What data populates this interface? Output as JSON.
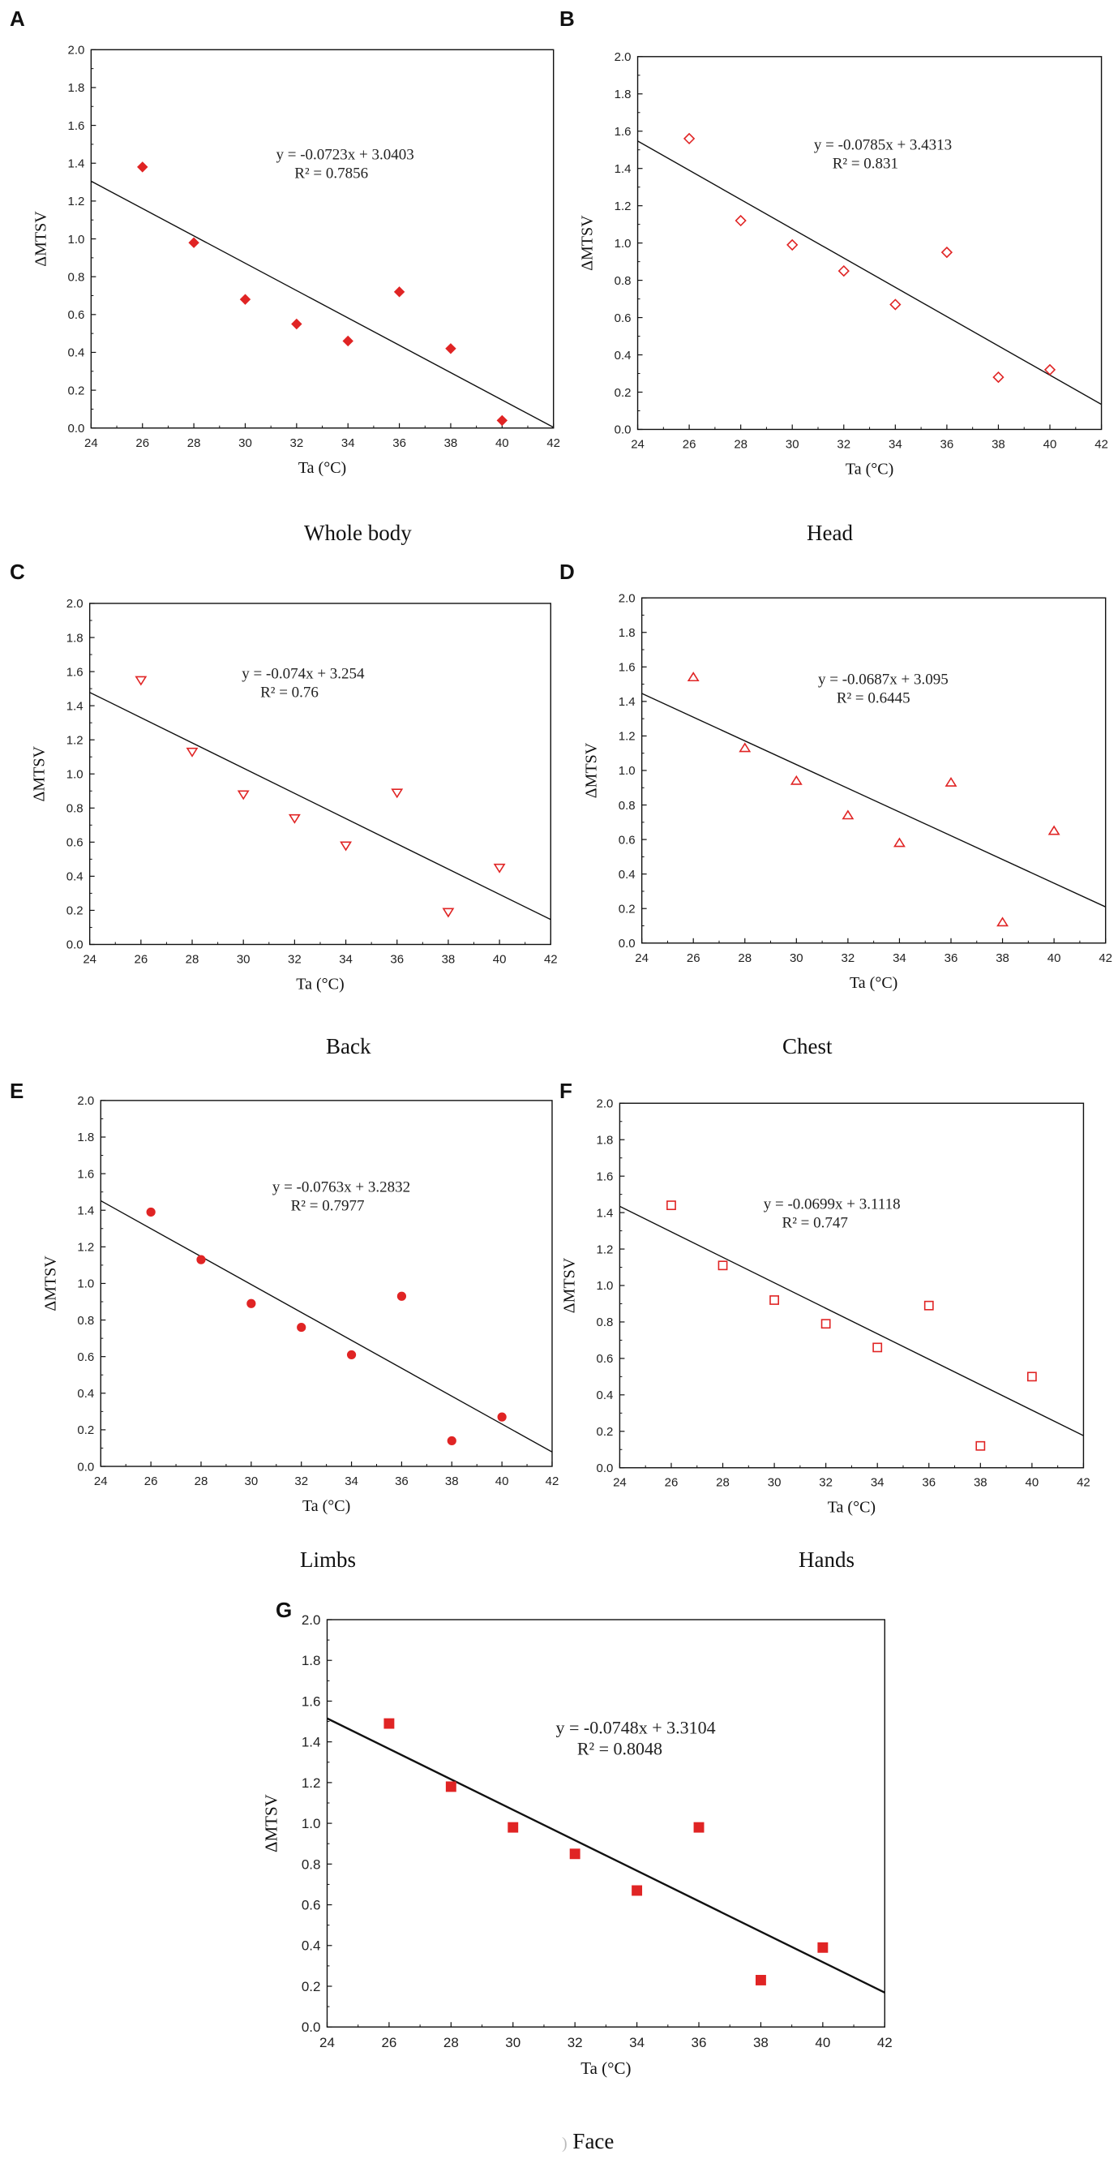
{
  "figure": {
    "caption_prefix_G": ")"
  },
  "colors": {
    "marker": "#e02424",
    "line": "#111111",
    "axis": "#111111"
  },
  "chart_data": [
    {
      "id": "A",
      "type": "scatter",
      "label": "A",
      "subtitle": "Whole body",
      "marker": "diamond-filled",
      "xlabel": "Ta (°C)",
      "ylabel": "ΔMTSV",
      "xlim": [
        24,
        42
      ],
      "ylim": [
        0,
        2.0
      ],
      "xticks": [
        "24",
        "26",
        "28",
        "30",
        "32",
        "34",
        "36",
        "38",
        "40",
        "42"
      ],
      "yticks": [
        "0.0",
        "0.2",
        "0.4",
        "0.6",
        "0.8",
        "1.0",
        "1.2",
        "1.4",
        "1.6",
        "1.8",
        "2.0"
      ],
      "points": [
        [
          26,
          1.38
        ],
        [
          28,
          0.98
        ],
        [
          30,
          0.68
        ],
        [
          32,
          0.55
        ],
        [
          34,
          0.46
        ],
        [
          36,
          0.72
        ],
        [
          38,
          0.42
        ],
        [
          40,
          0.04
        ]
      ],
      "fit": {
        "slope": -0.0723,
        "intercept": 3.0403
      },
      "equation": "y = -0.0723x + 3.0403",
      "r2": "R² = 0.7856"
    },
    {
      "id": "B",
      "type": "scatter",
      "label": "B",
      "subtitle": "Head",
      "marker": "diamond-open",
      "xlabel": "Ta (°C)",
      "ylabel": "ΔMTSV",
      "xlim": [
        24,
        42
      ],
      "ylim": [
        0,
        2.0
      ],
      "xticks": [
        "24",
        "26",
        "28",
        "30",
        "32",
        "34",
        "36",
        "38",
        "40",
        "42"
      ],
      "yticks": [
        "0.0",
        "0.2",
        "0.4",
        "0.6",
        "0.8",
        "1.0",
        "1.2",
        "1.4",
        "1.6",
        "1.8",
        "2.0"
      ],
      "points": [
        [
          26,
          1.56
        ],
        [
          28,
          1.12
        ],
        [
          30,
          0.99
        ],
        [
          32,
          0.85
        ],
        [
          34,
          0.67
        ],
        [
          36,
          0.95
        ],
        [
          38,
          0.28
        ],
        [
          40,
          0.32
        ]
      ],
      "fit": {
        "slope": -0.0785,
        "intercept": 3.4313
      },
      "equation": "y = -0.0785x + 3.4313",
      "r2": "R² = 0.831"
    },
    {
      "id": "C",
      "type": "scatter",
      "label": "C",
      "subtitle": "Back",
      "marker": "triangle-down-open",
      "xlabel": "Ta (°C)",
      "ylabel": "ΔMTSV",
      "xlim": [
        24,
        42
      ],
      "ylim": [
        0,
        2.0
      ],
      "xticks": [
        "24",
        "26",
        "28",
        "30",
        "32",
        "34",
        "36",
        "38",
        "40",
        "42"
      ],
      "yticks": [
        "0.0",
        "0.2",
        "0.4",
        "0.6",
        "0.8",
        "1.0",
        "1.2",
        "1.4",
        "1.6",
        "1.8",
        "2.0"
      ],
      "points": [
        [
          26,
          1.55
        ],
        [
          28,
          1.13
        ],
        [
          30,
          0.88
        ],
        [
          32,
          0.74
        ],
        [
          34,
          0.58
        ],
        [
          36,
          0.89
        ],
        [
          38,
          0.19
        ],
        [
          40,
          0.45
        ]
      ],
      "fit": {
        "slope": -0.074,
        "intercept": 3.254
      },
      "equation": "y = -0.074x + 3.254",
      "r2": "R² = 0.76"
    },
    {
      "id": "D",
      "type": "scatter",
      "label": "D",
      "subtitle": "Chest",
      "marker": "triangle-up-open",
      "xlabel": "Ta (°C)",
      "ylabel": "ΔMTSV",
      "xlim": [
        24,
        42
      ],
      "ylim": [
        0,
        2.0
      ],
      "xticks": [
        "24",
        "26",
        "28",
        "30",
        "32",
        "34",
        "36",
        "38",
        "40",
        "42"
      ],
      "yticks": [
        "0.0",
        "0.2",
        "0.4",
        "0.6",
        "0.8",
        "1.0",
        "1.2",
        "1.4",
        "1.6",
        "1.8",
        "2.0"
      ],
      "points": [
        [
          26,
          1.54
        ],
        [
          28,
          1.13
        ],
        [
          30,
          0.94
        ],
        [
          32,
          0.74
        ],
        [
          34,
          0.58
        ],
        [
          36,
          0.93
        ],
        [
          38,
          0.12
        ],
        [
          40,
          0.65
        ]
      ],
      "fit": {
        "slope": -0.0687,
        "intercept": 3.095
      },
      "equation": "y = -0.0687x + 3.095",
      "r2": "R² = 0.6445"
    },
    {
      "id": "E",
      "type": "scatter",
      "label": "E",
      "subtitle": "Limbs",
      "marker": "circle-filled",
      "xlabel": "Ta (°C)",
      "ylabel": "ΔMTSV",
      "xlim": [
        24,
        42
      ],
      "ylim": [
        0,
        2.0
      ],
      "xticks": [
        "24",
        "26",
        "28",
        "30",
        "32",
        "34",
        "36",
        "38",
        "40",
        "42"
      ],
      "yticks": [
        "0.0",
        "0.2",
        "0.4",
        "0.6",
        "0.8",
        "1.0",
        "1.2",
        "1.4",
        "1.6",
        "1.8",
        "2.0"
      ],
      "points": [
        [
          26,
          1.39
        ],
        [
          28,
          1.13
        ],
        [
          30,
          0.89
        ],
        [
          32,
          0.76
        ],
        [
          34,
          0.61
        ],
        [
          36,
          0.93
        ],
        [
          38,
          0.14
        ],
        [
          40,
          0.27
        ]
      ],
      "fit": {
        "slope": -0.0763,
        "intercept": 3.2832
      },
      "equation": "y = -0.0763x + 3.2832",
      "r2": "R² = 0.7977"
    },
    {
      "id": "F",
      "type": "scatter",
      "label": "F",
      "subtitle": "Hands",
      "marker": "square-open",
      "xlabel": "Ta (°C)",
      "ylabel": "ΔMTSV",
      "xlim": [
        24,
        42
      ],
      "ylim": [
        0,
        2.0
      ],
      "xticks": [
        "24",
        "26",
        "28",
        "30",
        "32",
        "34",
        "36",
        "38",
        "40",
        "42"
      ],
      "yticks": [
        "0.0",
        "0.2",
        "0.4",
        "0.6",
        "0.8",
        "1.0",
        "1.2",
        "1.4",
        "1.6",
        "1.8",
        "2.0"
      ],
      "points": [
        [
          26,
          1.44
        ],
        [
          28,
          1.11
        ],
        [
          30,
          0.92
        ],
        [
          32,
          0.79
        ],
        [
          34,
          0.66
        ],
        [
          36,
          0.89
        ],
        [
          38,
          0.12
        ],
        [
          40,
          0.5
        ]
      ],
      "fit": {
        "slope": -0.0699,
        "intercept": 3.1118
      },
      "equation": "y = -0.0699x + 3.1118",
      "r2": "R² = 0.747"
    },
    {
      "id": "G",
      "type": "scatter",
      "label": "G",
      "subtitle": "Face",
      "marker": "square-filled",
      "xlabel": "Ta (°C)",
      "ylabel": "ΔMTSV",
      "xlim": [
        24,
        42
      ],
      "ylim": [
        0,
        2.0
      ],
      "xticks": [
        "24",
        "26",
        "28",
        "30",
        "32",
        "34",
        "36",
        "38",
        "40",
        "42"
      ],
      "yticks": [
        "0.0",
        "0.2",
        "0.4",
        "0.6",
        "0.8",
        "1.0",
        "1.2",
        "1.4",
        "1.6",
        "1.8",
        "2.0"
      ],
      "points": [
        [
          26,
          1.49
        ],
        [
          28,
          1.18
        ],
        [
          30,
          0.98
        ],
        [
          32,
          0.85
        ],
        [
          34,
          0.67
        ],
        [
          36,
          0.98
        ],
        [
          38,
          0.23
        ],
        [
          40,
          0.39
        ]
      ],
      "fit": {
        "slope": -0.0748,
        "intercept": 3.3104
      },
      "equation": "y = -0.0748x + 3.3104",
      "r2": "R² = 0.8048"
    }
  ]
}
